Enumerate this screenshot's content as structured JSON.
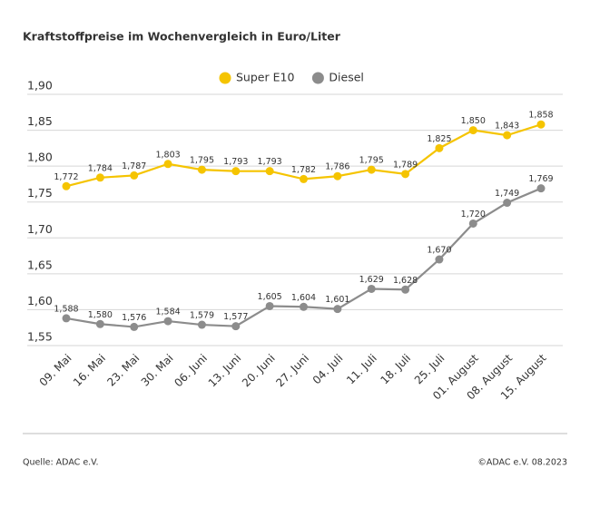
{
  "chart_data": {
    "type": "line",
    "title": "Kraftstoffpreise im Wochenvergleich in Euro/Liter",
    "categories": [
      "09. Mai",
      "16. Mai",
      "23. Mai",
      "30. Mai",
      "06. Juni",
      "13. Juni",
      "20. Juni",
      "27. Juni",
      "04. Juli",
      "11. Juli",
      "18. Juli",
      "25. Juli",
      "01. August",
      "08. August",
      "15. August"
    ],
    "series": [
      {
        "name": "Super E10",
        "color": "#f5c400",
        "values": [
          1.772,
          1.784,
          1.787,
          1.803,
          1.795,
          1.793,
          1.793,
          1.782,
          1.786,
          1.795,
          1.789,
          1.825,
          1.85,
          1.843,
          1.858
        ],
        "value_labels": [
          "1,772",
          "1,784",
          "1,787",
          "1,803",
          "1,795",
          "1,793",
          "1,793",
          "1,782",
          "1,786",
          "1,795",
          "1,789",
          "1,825",
          "1,850",
          "1,843",
          "1,858"
        ]
      },
      {
        "name": "Diesel",
        "color": "#8c8c8c",
        "values": [
          1.588,
          1.58,
          1.576,
          1.584,
          1.579,
          1.577,
          1.605,
          1.604,
          1.601,
          1.629,
          1.628,
          1.67,
          1.72,
          1.749,
          1.769
        ],
        "value_labels": [
          "1,588",
          "1,580",
          "1,576",
          "1,584",
          "1,579",
          "1,577",
          "1,605",
          "1,604",
          "1,601",
          "1,629",
          "1,628",
          "1,670",
          "1,720",
          "1,749",
          "1,769"
        ]
      }
    ],
    "ylim": [
      1.55,
      1.9
    ],
    "yticks": [
      {
        "value": 1.55,
        "label": "1,55"
      },
      {
        "value": 1.6,
        "label": "1,60"
      },
      {
        "value": 1.65,
        "label": "1,65"
      },
      {
        "value": 1.7,
        "label": "1,70"
      },
      {
        "value": 1.75,
        "label": "1,75"
      },
      {
        "value": 1.8,
        "label": "1,80"
      },
      {
        "value": 1.85,
        "label": "1,85"
      },
      {
        "value": 1.9,
        "label": "1,90"
      }
    ],
    "grid": true,
    "legend": "top",
    "source": "Quelle: ADAC e.V.",
    "credit": "©ADAC e.V. 08.2023"
  }
}
